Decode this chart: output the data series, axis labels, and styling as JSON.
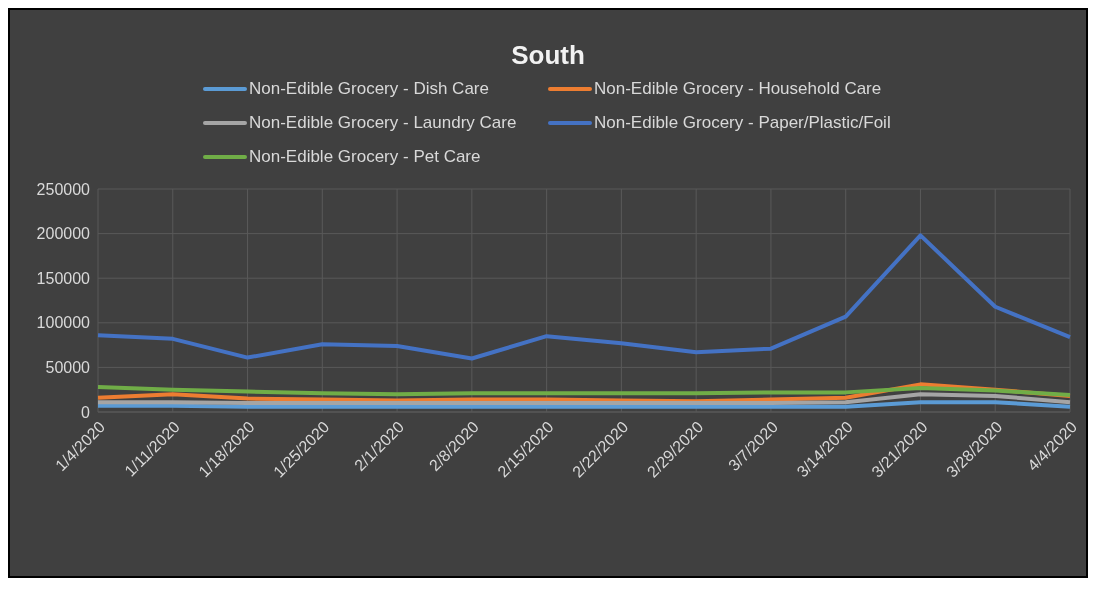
{
  "chart_data": {
    "type": "line",
    "title": "South",
    "categories": [
      "1/4/2020",
      "1/11/2020",
      "1/18/2020",
      "1/25/2020",
      "2/1/2020",
      "2/8/2020",
      "2/15/2020",
      "2/22/2020",
      "2/29/2020",
      "3/7/2020",
      "3/14/2020",
      "3/21/2020",
      "3/28/2020",
      "4/4/2020"
    ],
    "series": [
      {
        "name": "Non-Edible Grocery - Dish Care",
        "color": "#5b9bd5",
        "values": [
          7000,
          7000,
          6000,
          6000,
          6000,
          6000,
          6000,
          6000,
          6000,
          6000,
          6000,
          11000,
          11000,
          6000
        ]
      },
      {
        "name": "Non-Edible Grocery - Household Care",
        "color": "#ed7d31",
        "values": [
          16000,
          20000,
          15000,
          14000,
          13000,
          14000,
          14000,
          13000,
          12000,
          14000,
          16000,
          31000,
          25000,
          18000
        ]
      },
      {
        "name": "Non-Edible Grocery - Laundry Care",
        "color": "#a5a5a5",
        "values": [
          11000,
          11000,
          10000,
          10000,
          10000,
          10000,
          10000,
          10000,
          10000,
          10000,
          11000,
          20000,
          18000,
          11000
        ]
      },
      {
        "name": "Non-Edible Grocery - Paper/Plastic/Foil",
        "color": "#4472c4",
        "values": [
          86000,
          82000,
          61000,
          76000,
          74000,
          60000,
          85000,
          77000,
          67000,
          71000,
          107000,
          198000,
          118000,
          84000
        ]
      },
      {
        "name": "Non-Edible Grocery - Pet Care",
        "color": "#70ad47",
        "values": [
          28000,
          25000,
          23000,
          21000,
          20000,
          21000,
          21000,
          21000,
          21000,
          22000,
          22000,
          27000,
          24000,
          19000
        ]
      }
    ],
    "ylim": [
      0,
      250000
    ],
    "yticks": [
      0,
      50000,
      100000,
      150000,
      200000,
      250000
    ],
    "grid": true,
    "legend": "top",
    "marker": "none",
    "line_style": "solid"
  }
}
